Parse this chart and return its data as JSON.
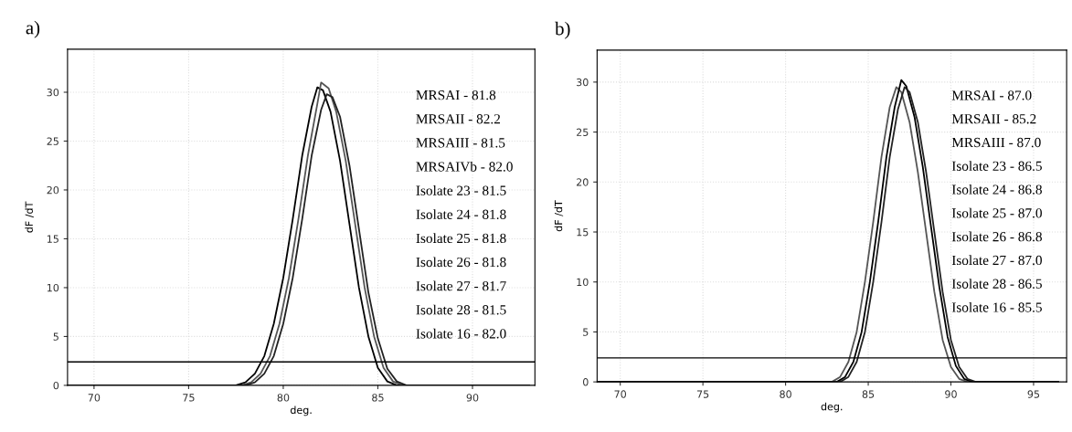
{
  "chart_data": [
    {
      "type": "line",
      "title": "a)",
      "xlabel": "deg.",
      "ylabel": "dF /dT",
      "xlim": [
        68.6,
        93.3
      ],
      "ylim": [
        0,
        34.4
      ],
      "xticks": [
        70,
        75,
        80,
        85,
        90
      ],
      "yticks": [
        0,
        5,
        10,
        15,
        20,
        25,
        30
      ],
      "grid": true,
      "marker": "none",
      "line_style": "solid",
      "ref_lines": [
        {
          "axis": "y",
          "value": 2.4,
          "color": "#000000"
        }
      ],
      "annotations": [
        "MRSAI - 81.8",
        "MRSAII - 82.2",
        "MRSAIII - 81.5",
        "MRSAIVb - 82.0",
        "Isolate 23 - 81.5",
        "Isolate 24 - 81.8",
        "Isolate 25 - 81.8",
        "Isolate 26 - 81.8",
        "Isolate 27 - 81.7",
        "Isolate 28 - 81.5",
        "Isolate 16 - 82.0"
      ],
      "series": [
        {
          "color": "#000000",
          "x": [
            68.6,
            77.5,
            78.0,
            78.5,
            79.0,
            79.5,
            80.0,
            80.5,
            81.0,
            81.5,
            81.8,
            82.1,
            82.5,
            83.0,
            83.5,
            84.0,
            84.5,
            85.0,
            85.5,
            86.0,
            93.0
          ],
          "values": [
            0,
            0,
            0.3,
            1.2,
            3.0,
            6.3,
            11,
            17,
            23.5,
            28.5,
            30.5,
            30.2,
            28,
            23,
            16.5,
            10,
            5,
            1.8,
            0.4,
            0,
            0
          ]
        },
        {
          "color": "#555555",
          "x": [
            68.6,
            77.8,
            78.3,
            78.8,
            79.3,
            79.8,
            80.3,
            80.8,
            81.3,
            81.8,
            82.0,
            82.4,
            82.8,
            83.3,
            83.8,
            84.3,
            84.8,
            85.3,
            85.8,
            86.3,
            93.0
          ],
          "values": [
            0,
            0,
            0.3,
            1.2,
            3.0,
            6.3,
            11,
            17,
            23.5,
            28.8,
            31,
            30.4,
            28,
            23,
            16.5,
            10,
            5,
            1.8,
            0.4,
            0,
            0
          ]
        },
        {
          "color": "#222222",
          "x": [
            68.6,
            78.0,
            78.5,
            79.0,
            79.5,
            80.0,
            80.5,
            81.0,
            81.5,
            82.0,
            82.3,
            82.6,
            83.0,
            83.5,
            84.0,
            84.5,
            85.0,
            85.5,
            86.0,
            86.5,
            93.0
          ],
          "values": [
            0,
            0,
            0.3,
            1.2,
            3.0,
            6.3,
            11,
            17,
            23.5,
            28.2,
            29.8,
            29.5,
            27.5,
            22.5,
            16,
            9.5,
            4.8,
            1.7,
            0.4,
            0,
            0
          ]
        }
      ]
    },
    {
      "type": "line",
      "title": "b)",
      "xlabel": "deg.",
      "ylabel": "dF /dT",
      "xlim": [
        68.6,
        97
      ],
      "ylim": [
        0,
        33.2
      ],
      "xticks": [
        70,
        75,
        80,
        85,
        90,
        95
      ],
      "yticks": [
        0,
        5,
        10,
        15,
        20,
        25,
        30
      ],
      "grid": true,
      "marker": "none",
      "line_style": "solid",
      "ref_lines": [
        {
          "axis": "y",
          "value": 2.4,
          "color": "#000000"
        }
      ],
      "annotations": [
        "MRSAI - 87.0",
        "MRSAII - 85.2",
        "MRSAIII - 87.0",
        "Isolate 23 - 86.5",
        "Isolate 24 - 86.8",
        "Isolate 25 - 87.0",
        "Isolate 26 - 86.8",
        "Isolate 27 - 87.0",
        "Isolate 28 - 86.5",
        "Isolate 16 - 85.5"
      ],
      "series": [
        {
          "color": "#555555",
          "x": [
            68.6,
            82.8,
            83.3,
            83.8,
            84.3,
            84.8,
            85.3,
            85.8,
            86.3,
            86.7,
            87.0,
            87.5,
            88.0,
            88.5,
            89.0,
            89.5,
            90.0,
            90.5,
            91.0,
            96.5
          ],
          "values": [
            0,
            0,
            0.5,
            2.0,
            5,
            10,
            16,
            22.5,
            27.5,
            29.5,
            29,
            26,
            21,
            15,
            9,
            4.2,
            1.5,
            0.3,
            0,
            0
          ]
        },
        {
          "color": "#000000",
          "x": [
            68.6,
            83.1,
            83.6,
            84.1,
            84.6,
            85.1,
            85.6,
            86.1,
            86.6,
            87.0,
            87.3,
            87.8,
            88.3,
            88.8,
            89.3,
            89.8,
            90.3,
            90.8,
            91.3,
            96.5
          ],
          "values": [
            0,
            0,
            0.5,
            2.0,
            5,
            10,
            16,
            22.5,
            27.5,
            30.2,
            29.6,
            26.5,
            21.5,
            15.5,
            9.5,
            4.5,
            1.6,
            0.3,
            0,
            0
          ]
        },
        {
          "color": "#222222",
          "x": [
            68.6,
            83.3,
            83.8,
            84.3,
            84.8,
            85.3,
            85.8,
            86.3,
            86.8,
            87.2,
            87.5,
            88.0,
            88.5,
            89.0,
            89.5,
            90.0,
            90.5,
            91.0,
            91.5,
            96.5
          ],
          "values": [
            0,
            0,
            0.5,
            2.0,
            5,
            10,
            16,
            22.5,
            27.3,
            29.5,
            29,
            26,
            21,
            15,
            9,
            4.2,
            1.5,
            0.3,
            0,
            0
          ]
        }
      ]
    }
  ]
}
